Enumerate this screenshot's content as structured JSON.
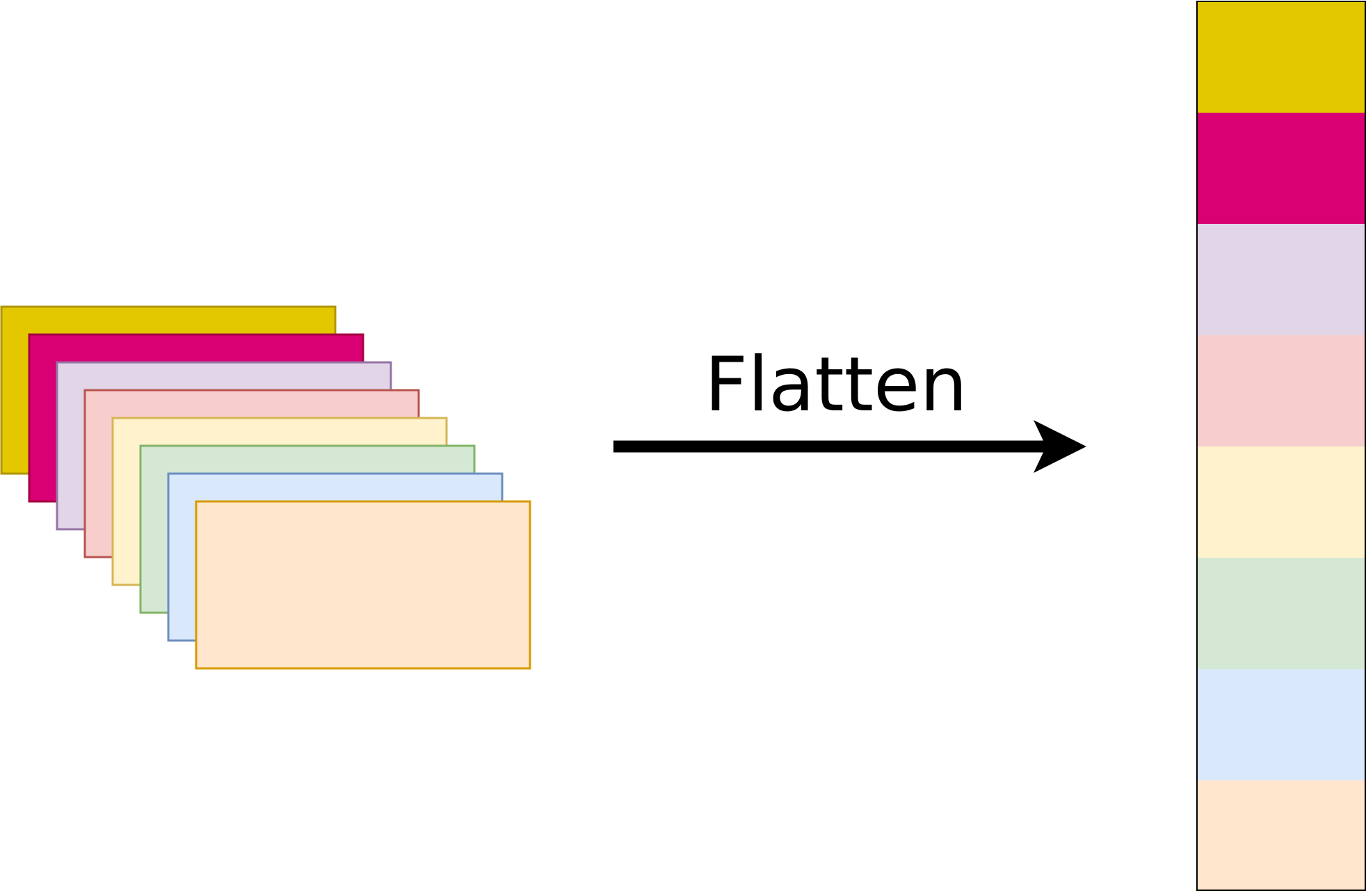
{
  "label": "Flatten",
  "colors": {
    "arrow": "#000000",
    "column_border": "#000000"
  },
  "feature_maps": [
    {
      "fill": "#e3c800",
      "stroke": "#b09500"
    },
    {
      "fill": "#d80073",
      "stroke": "#a50040"
    },
    {
      "fill": "#e1d5e7",
      "stroke": "#9673a6"
    },
    {
      "fill": "#f8cecc",
      "stroke": "#b85450"
    },
    {
      "fill": "#fff2cc",
      "stroke": "#d6b656"
    },
    {
      "fill": "#d5e8d4",
      "stroke": "#82b366"
    },
    {
      "fill": "#dae8fc",
      "stroke": "#6c8ebf"
    },
    {
      "fill": "#ffe6cc",
      "stroke": "#d79b00"
    }
  ]
}
